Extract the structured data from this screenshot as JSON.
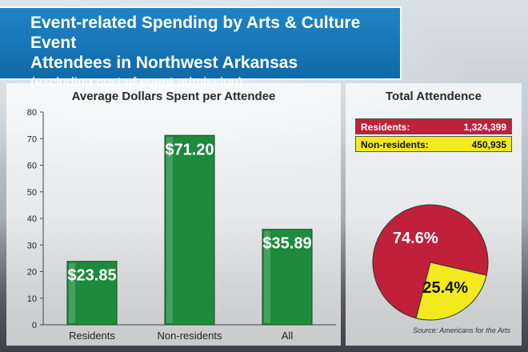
{
  "header": {
    "title_line1": "Event-related Spending by Arts & Culture Event",
    "title_line2": "Attendees in Northwest Arkansas",
    "subtitle": "(excluding cost of event admission)"
  },
  "chart_data": [
    {
      "type": "bar",
      "title": "Average Dollars Spent per Attendee",
      "categories": [
        "Residents",
        "Non-residents",
        "All"
      ],
      "values": [
        23.85,
        71.2,
        35.89
      ],
      "labels": [
        "$23.85",
        "$71.20",
        "$35.89"
      ],
      "ylim": [
        0,
        80
      ],
      "yticks": [
        0,
        10,
        20,
        30,
        40,
        50,
        60,
        70,
        80
      ],
      "color": "#1e8a3c",
      "grid": false
    },
    {
      "type": "pie",
      "title": "Total Attendence",
      "legend": [
        {
          "name": "Residents:",
          "value": "1,324,399",
          "color": "#c0203a"
        },
        {
          "name": "Non-residents:",
          "value": "450,935",
          "color": "#f2ea1e"
        }
      ],
      "slices": [
        {
          "name": "Residents",
          "value": 74.6,
          "label": "74.6%",
          "color": "#c0203a"
        },
        {
          "name": "Non-residents",
          "value": 25.4,
          "label": "25.4%",
          "color": "#f2ea1e"
        }
      ]
    }
  ],
  "source": "Source: Americans for the Arts"
}
